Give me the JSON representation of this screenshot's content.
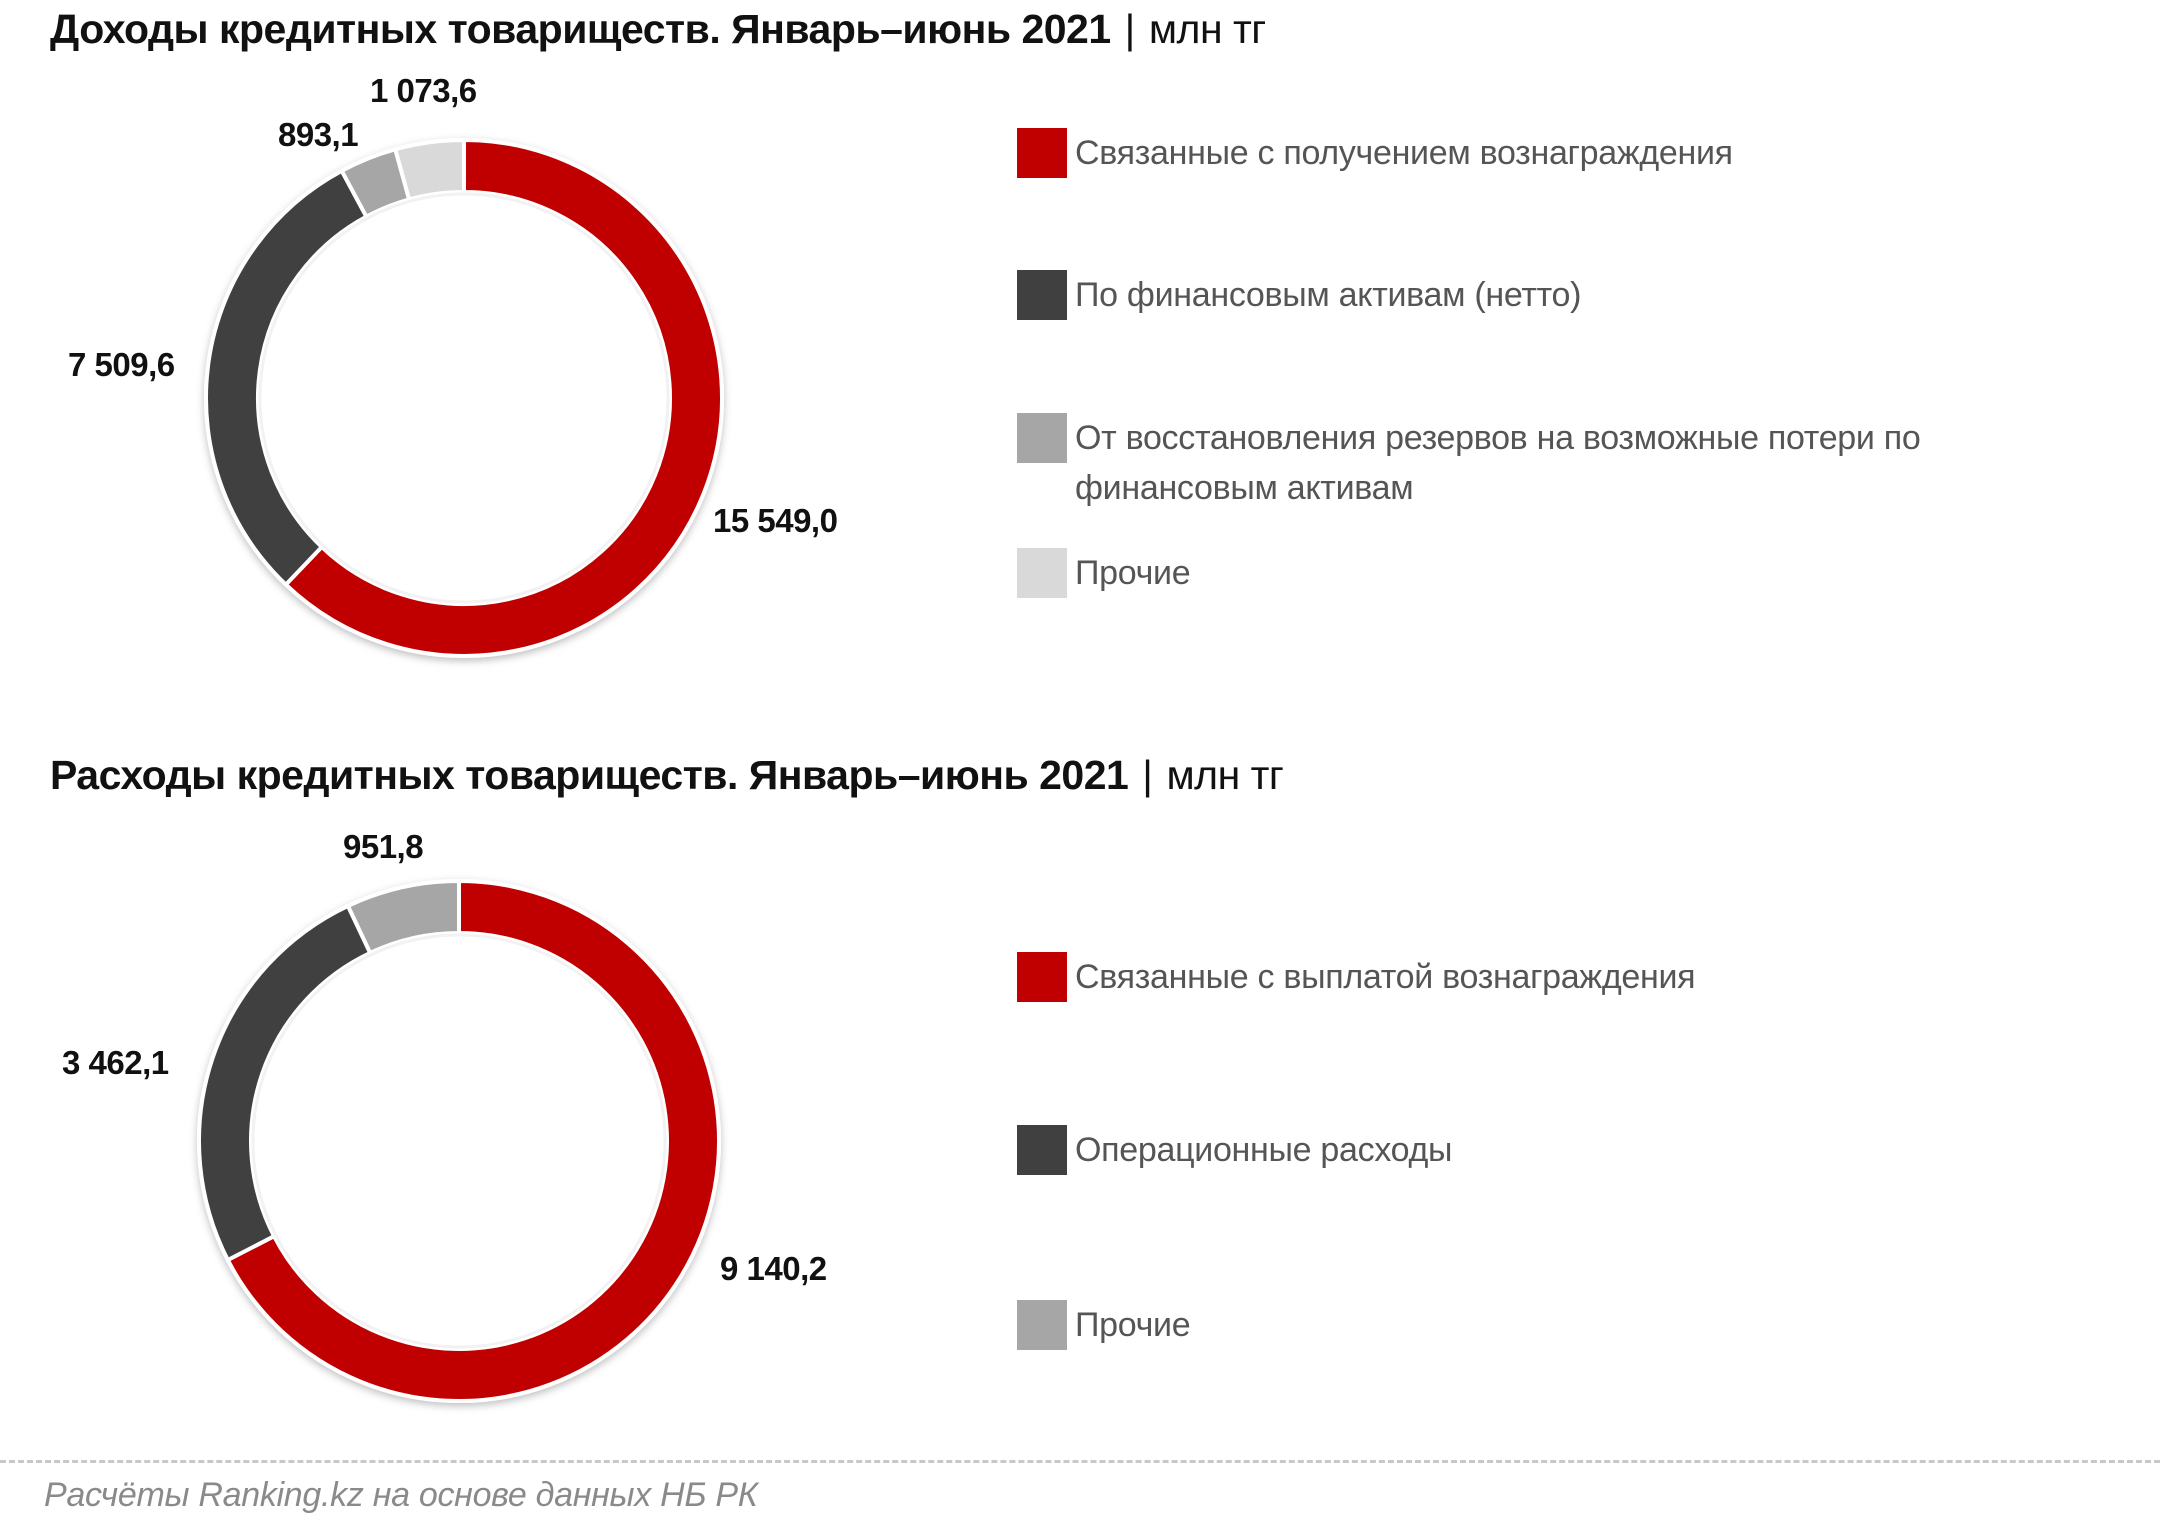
{
  "chart_data": [
    {
      "type": "pie",
      "subtype": "donut",
      "title": "Доходы кредитных товариществ. Январь–июнь 2021",
      "unit": "млн тг",
      "categories": [
        "Связанные с получением вознаграждения",
        "По финансовым активам (нетто)",
        "От восстановления резервов на возможные потери по финансовым активам",
        "Прочие"
      ],
      "values": [
        15549.0,
        7509.6,
        893.1,
        1073.6
      ],
      "value_labels": [
        "15 549,0",
        "7 509,6",
        "893,1",
        "1 073,6"
      ],
      "colors": [
        "#c00000",
        "#404040",
        "#a6a6a6",
        "#d9d9d9"
      ],
      "legend_position": "right"
    },
    {
      "type": "pie",
      "subtype": "donut",
      "title": "Расходы кредитных товариществ. Январь–июнь 2021",
      "unit": "млн тг",
      "categories": [
        "Связанные с выплатой вознаграждения",
        "Операционные расходы",
        "Прочие"
      ],
      "values": [
        9140.2,
        3462.1,
        951.8
      ],
      "value_labels": [
        "9 140,2",
        "3 462,1",
        "951,8"
      ],
      "colors": [
        "#c00000",
        "#404040",
        "#a6a6a6"
      ],
      "legend_position": "right"
    }
  ],
  "income": {
    "title": "Доходы кредитных товариществ. Январь–июнь 2021",
    "separator": "|",
    "unit": "млн тг",
    "labels": {
      "reward": "15 549,0",
      "financial": "7 509,6",
      "reserves": "893,1",
      "other": "1 073,6"
    },
    "legend": [
      {
        "label": "Связанные с получением вознаграждения",
        "color": "#c00000"
      },
      {
        "label": "По финансовым активам (нетто)",
        "color": "#404040"
      },
      {
        "label": "От восстановления резервов на возможные потери по финансовым активам",
        "color": "#a6a6a6"
      },
      {
        "label": "Прочие",
        "color": "#d9d9d9"
      }
    ]
  },
  "expenses": {
    "title": "Расходы кредитных товариществ. Январь–июнь 2021",
    "separator": "|",
    "unit": "млн тг",
    "labels": {
      "reward": "9 140,2",
      "operational": "3 462,1",
      "other": "951,8"
    },
    "legend": [
      {
        "label": "Связанные с выплатой вознаграждения",
        "color": "#c00000"
      },
      {
        "label": "Операционные расходы",
        "color": "#404040"
      },
      {
        "label": "Прочие",
        "color": "#a6a6a6"
      }
    ]
  },
  "footer": {
    "source": "Расчёты Ranking.kz на основе данных НБ РК"
  }
}
